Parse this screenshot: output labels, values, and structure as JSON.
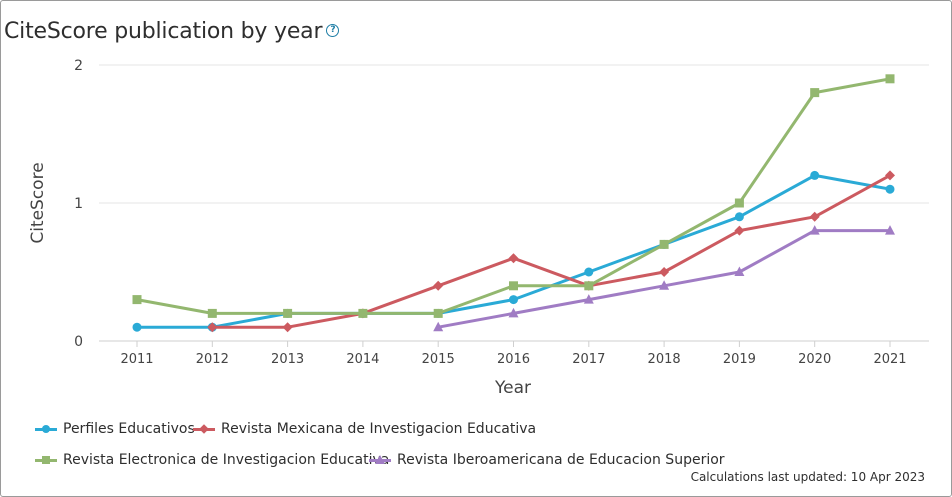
{
  "header": {
    "title": "CiteScore publication by year",
    "help_icon": "question-circle-icon",
    "help_glyph": "?"
  },
  "chart_data": {
    "type": "line",
    "title": "CiteScore publication by year",
    "xlabel": "Year",
    "ylabel": "CiteScore",
    "categories": [
      "2011",
      "2012",
      "2013",
      "2014",
      "2015",
      "2016",
      "2017",
      "2018",
      "2019",
      "2020",
      "2021"
    ],
    "yticks": [
      "0",
      "1",
      "2"
    ],
    "ylim": [
      0,
      2
    ],
    "grid": true,
    "legend_position": "bottom",
    "series": [
      {
        "name": "Perfiles Educativos",
        "color": "#2aaad6",
        "marker": "circle",
        "values": [
          0.1,
          0.1,
          0.2,
          0.2,
          0.2,
          0.3,
          0.5,
          0.7,
          0.9,
          1.2,
          1.1
        ]
      },
      {
        "name": "Revista Mexicana de Investigacion Educativa",
        "color": "#cc5a60",
        "marker": "diamond",
        "values": [
          null,
          0.1,
          0.1,
          0.2,
          0.4,
          0.6,
          0.4,
          0.5,
          0.8,
          0.9,
          1.2
        ]
      },
      {
        "name": "Revista Electronica de Investigacion Educativa",
        "color": "#93b76f",
        "marker": "square",
        "values": [
          0.3,
          0.2,
          0.2,
          0.2,
          0.2,
          0.4,
          0.4,
          0.7,
          1.0,
          1.8,
          1.9
        ]
      },
      {
        "name": "Revista Iberoamericana de Educacion Superior",
        "color": "#a07cc4",
        "marker": "triangle",
        "values": [
          null,
          null,
          null,
          null,
          0.1,
          0.2,
          0.3,
          0.4,
          0.5,
          0.8,
          0.8
        ]
      }
    ]
  },
  "footer": {
    "updated": "Calculations last updated: 10 Apr 2023"
  }
}
